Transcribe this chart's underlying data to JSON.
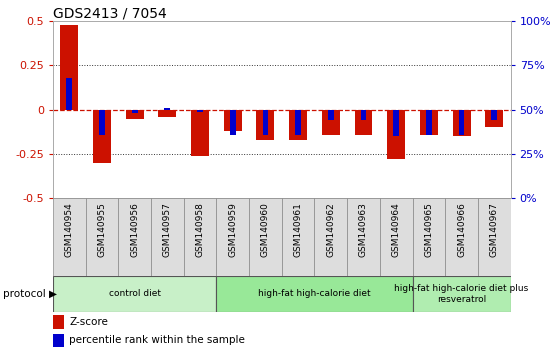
{
  "title": "GDS2413 / 7054",
  "samples": [
    "GSM140954",
    "GSM140955",
    "GSM140956",
    "GSM140957",
    "GSM140958",
    "GSM140959",
    "GSM140960",
    "GSM140961",
    "GSM140962",
    "GSM140963",
    "GSM140964",
    "GSM140965",
    "GSM140966",
    "GSM140967"
  ],
  "zscore": [
    0.48,
    -0.3,
    -0.05,
    -0.04,
    -0.26,
    -0.12,
    -0.17,
    -0.17,
    -0.14,
    -0.14,
    -0.28,
    -0.14,
    -0.15,
    -0.1
  ],
  "pct_rank_raw": [
    68,
    36,
    48,
    51,
    49,
    36,
    36,
    36,
    44,
    44,
    35,
    36,
    36,
    44
  ],
  "groups": [
    {
      "label": "control diet",
      "start": 0,
      "end": 5,
      "color": "#c8f0c8"
    },
    {
      "label": "high-fat high-calorie diet",
      "start": 5,
      "end": 11,
      "color": "#98e898"
    },
    {
      "label": "high-fat high-calorie diet plus\nresveratrol",
      "start": 11,
      "end": 14,
      "color": "#b0edb0"
    }
  ],
  "ylim": [
    -0.5,
    0.5
  ],
  "zscore_color": "#cc1100",
  "pct_color": "#0000cc",
  "bg_color": "#ffffff",
  "tick_color_left": "#cc1100",
  "tick_color_right": "#0000cc",
  "zero_line_color": "#cc1100",
  "protocol_label": "protocol ▶",
  "legend_zscore": "Z-score",
  "legend_pct": "percentile rank within the sample",
  "right_yticks": [
    0,
    25,
    50,
    75,
    100
  ],
  "right_yticklabels": [
    "0%",
    "25%",
    "50%",
    "75%",
    "100%"
  ]
}
